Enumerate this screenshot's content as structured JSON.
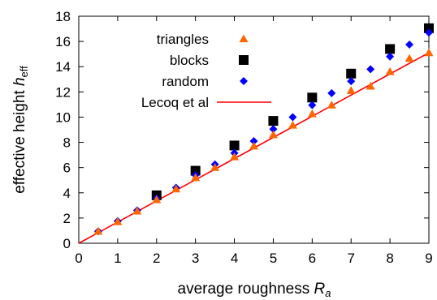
{
  "chart_data": {
    "type": "scatter",
    "xlabel": "average roughness",
    "xlabel_symbol": "R",
    "xlabel_sub": "a",
    "ylabel": "effective height",
    "ylabel_symbol": "h",
    "ylabel_sub": "eff",
    "xlim": [
      0,
      9
    ],
    "ylim": [
      0,
      18
    ],
    "xticks": [
      0,
      1,
      2,
      3,
      4,
      5,
      6,
      7,
      8,
      9
    ],
    "yticks": [
      0,
      2,
      4,
      6,
      8,
      10,
      12,
      14,
      16,
      18
    ],
    "grid": false,
    "legend_position": "top-left",
    "series": [
      {
        "name": "triangles",
        "marker": "triangle",
        "color": "#ff6600",
        "x": [
          0.5,
          1,
          1.5,
          2,
          2.5,
          3,
          3.5,
          4,
          4.5,
          5,
          5.5,
          6,
          6.5,
          7,
          7.5,
          8,
          8.5,
          9
        ],
        "y": [
          0.95,
          1.7,
          2.55,
          3.45,
          4.3,
          5.2,
          6.0,
          6.85,
          7.7,
          8.6,
          9.35,
          10.25,
          10.95,
          12.1,
          12.45,
          13.6,
          14.65,
          15.1
        ]
      },
      {
        "name": "blocks",
        "marker": "square",
        "color": "#000000",
        "x": [
          2,
          3,
          4,
          5,
          6,
          7,
          8,
          9
        ],
        "y": [
          3.8,
          5.75,
          7.75,
          9.7,
          11.55,
          13.45,
          15.4,
          17.05
        ]
      },
      {
        "name": "random",
        "marker": "diamond",
        "color": "#0000ff",
        "x": [
          0.5,
          1,
          1.5,
          2,
          2.5,
          3,
          3.5,
          4,
          4.5,
          5,
          5.5,
          6,
          6.5,
          7,
          7.5,
          8,
          8.5,
          9
        ],
        "y": [
          0.95,
          1.75,
          2.6,
          3.55,
          4.4,
          5.4,
          6.25,
          7.15,
          8.1,
          9.05,
          10.0,
          10.95,
          11.9,
          12.85,
          13.8,
          14.8,
          15.75,
          16.7
        ]
      },
      {
        "name": "Lecoq et al",
        "marker": "line",
        "color": "#ff0000",
        "x": [
          0,
          9
        ],
        "y": [
          0,
          15.1
        ]
      }
    ]
  }
}
